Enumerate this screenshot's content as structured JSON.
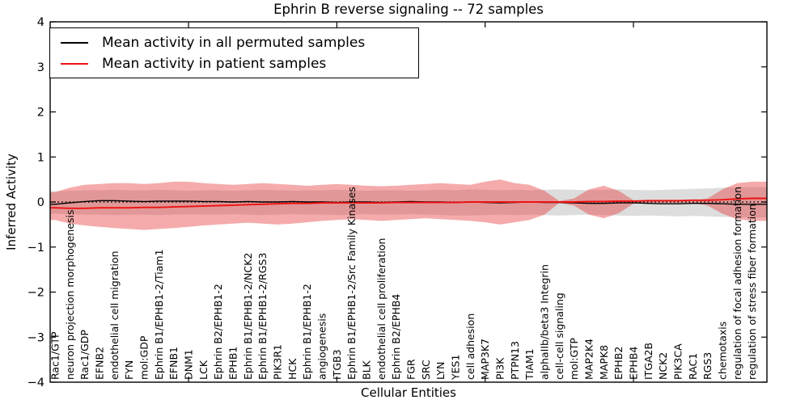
{
  "title": "Ephrin B reverse signaling -- 72 samples",
  "chart_data": {
    "type": "line",
    "title": "Ephrin B reverse signaling -- 72 samples",
    "xlabel": "Cellular Entities",
    "ylabel": "Inferred Activity",
    "ylim": [
      -4,
      4
    ],
    "yticks": [
      {
        "v": 4,
        "label": "4"
      },
      {
        "v": 3,
        "label": "3"
      },
      {
        "v": 2,
        "label": "2"
      },
      {
        "v": 1,
        "label": "1"
      },
      {
        "v": 0,
        "label": "0"
      },
      {
        "v": -1,
        "label": "−1"
      },
      {
        "v": -2,
        "label": "−2"
      },
      {
        "v": -3,
        "label": "−3"
      },
      {
        "v": -4,
        "label": "−4"
      }
    ],
    "xtick_positions": [
      10,
      20,
      30,
      40
    ],
    "grid": false,
    "legend_position": "upper left",
    "zero_line": {
      "y": 0,
      "style": "dotted",
      "color": "#000000"
    },
    "categories": [
      "Rac1/GTP",
      "neuron projection morphogenesis",
      "Rac1/GDP",
      "EFNB2",
      "endothelial cell migration",
      "FYN",
      "mol:GDP",
      "Ephrin B1/EPHB1-2/Tiam1",
      "EFNB1",
      "DNM1",
      "LCK",
      "Ephrin B2/EPHB1-2",
      "EPHB1",
      "Ephrin B1/EPHB1-2/NCK2",
      "Ephrin B1/EPHB1-2/RGS3",
      "PIK3R1",
      "HCK",
      "Ephrin B1/EPHB1-2",
      "angiogenesis",
      "ITGB3",
      "Ephrin B1/EPHB1-2/Src Family Kinases",
      "BLK",
      "endothelial cell proliferation",
      "Ephrin B2/EPHB4",
      "FGR",
      "SRC",
      "LYN",
      "YES1",
      "cell adhesion",
      "MAP3K7",
      "PI3K",
      "PTPN13",
      "TIAM1",
      "alphaIIb/beta3 Integrin",
      "cell-cell signaling",
      "mol:GTP",
      "MAP2K4",
      "MAPK8",
      "EPHB2",
      "EPHB4",
      "ITGA2B",
      "NCK2",
      "PIK3CA",
      "RAC1",
      "RGS3",
      "chemotaxis",
      "regulation of focal adhesion formation",
      "regulation of stress fiber formation"
    ],
    "series": [
      {
        "name": "Mean activity in all permuted samples",
        "type": "line",
        "color": "#000000",
        "values": [
          -0.05,
          -0.02,
          0.01,
          0.03,
          0.03,
          0.02,
          0.01,
          0.02,
          0.02,
          0.02,
          0.01,
          0.01,
          0,
          0.01,
          0,
          0,
          0.01,
          0,
          0,
          -0.01,
          0,
          0,
          -0.01,
          0,
          0.01,
          0,
          0,
          -0.01,
          0,
          -0.01,
          -0.02,
          -0.01,
          0,
          -0.01,
          -0.01,
          -0.02,
          -0.03,
          -0.03,
          -0.02,
          -0.02,
          -0.03,
          -0.04,
          -0.04,
          -0.03,
          -0.03,
          -0.04,
          -0.05,
          -0.05
        ]
      },
      {
        "name": "Mean activity in patient samples",
        "type": "line",
        "color": "#ee1212",
        "values": [
          -0.13,
          -0.14,
          -0.14,
          -0.13,
          -0.13,
          -0.13,
          -0.12,
          -0.12,
          -0.11,
          -0.1,
          -0.09,
          -0.08,
          -0.07,
          -0.06,
          -0.05,
          -0.04,
          -0.03,
          -0.03,
          -0.02,
          -0.02,
          -0.02,
          -0.02,
          -0.02,
          -0.01,
          -0.01,
          -0.01,
          -0.01,
          -0.01,
          0,
          0,
          0,
          0,
          0,
          0,
          0,
          0,
          0.01,
          0.01,
          0.02,
          0.02,
          0.03,
          0.03,
          0.03,
          0.04,
          0.04,
          0.05,
          0.07,
          0.08
        ]
      },
      {
        "name": "Permuted samples ± std band",
        "type": "band",
        "color": "rgba(128,128,128,0.27)",
        "upper": [
          0.24,
          0.25,
          0.26,
          0.26,
          0.27,
          0.26,
          0.26,
          0.27,
          0.26,
          0.25,
          0.26,
          0.26,
          0.25,
          0.26,
          0.27,
          0.26,
          0.25,
          0.26,
          0.26,
          0.27,
          0.26,
          0.25,
          0.26,
          0.26,
          0.25,
          0.26,
          0.27,
          0.26,
          0.28,
          0.27,
          0.26,
          0.27,
          0.26,
          0.27,
          0.28,
          0.27,
          0.26,
          0.27,
          0.28,
          0.27,
          0.26,
          0.27,
          0.28,
          0.29,
          0.3,
          0.32,
          0.33,
          0.33
        ],
        "lower": [
          -0.26,
          -0.27,
          -0.28,
          -0.28,
          -0.29,
          -0.28,
          -0.28,
          -0.29,
          -0.28,
          -0.27,
          -0.28,
          -0.28,
          -0.27,
          -0.28,
          -0.29,
          -0.28,
          -0.27,
          -0.28,
          -0.28,
          -0.29,
          -0.28,
          -0.27,
          -0.28,
          -0.28,
          -0.27,
          -0.28,
          -0.29,
          -0.3,
          -0.3,
          -0.29,
          -0.28,
          -0.29,
          -0.28,
          -0.29,
          -0.3,
          -0.29,
          -0.28,
          -0.29,
          -0.3,
          -0.31,
          -0.3,
          -0.31,
          -0.32,
          -0.31,
          -0.32,
          -0.33,
          -0.34,
          -0.34
        ]
      },
      {
        "name": "Patient samples ± std band",
        "type": "band",
        "color": "rgba(231,56,56,0.42)",
        "upper": [
          0.22,
          0.32,
          0.38,
          0.4,
          0.42,
          0.42,
          0.4,
          0.42,
          0.45,
          0.45,
          0.42,
          0.4,
          0.38,
          0.4,
          0.42,
          0.4,
          0.38,
          0.36,
          0.38,
          0.4,
          0.38,
          0.36,
          0.35,
          0.36,
          0.38,
          0.4,
          0.42,
          0.4,
          0.38,
          0.45,
          0.5,
          0.42,
          0.38,
          0.25,
          0.02,
          0.08,
          0.28,
          0.36,
          0.25,
          0.04,
          0.02,
          0.02,
          0.02,
          0.02,
          0.08,
          0.28,
          0.42,
          0.45
        ],
        "lower": [
          -0.4,
          -0.48,
          -0.52,
          -0.55,
          -0.58,
          -0.6,
          -0.62,
          -0.6,
          -0.58,
          -0.55,
          -0.52,
          -0.5,
          -0.48,
          -0.46,
          -0.48,
          -0.5,
          -0.48,
          -0.45,
          -0.42,
          -0.4,
          -0.38,
          -0.4,
          -0.42,
          -0.4,
          -0.38,
          -0.36,
          -0.38,
          -0.4,
          -0.42,
          -0.45,
          -0.5,
          -0.45,
          -0.4,
          -0.28,
          -0.02,
          -0.08,
          -0.28,
          -0.36,
          -0.25,
          -0.04,
          -0.02,
          -0.02,
          -0.02,
          -0.02,
          -0.08,
          -0.26,
          -0.38,
          -0.42
        ]
      }
    ]
  }
}
